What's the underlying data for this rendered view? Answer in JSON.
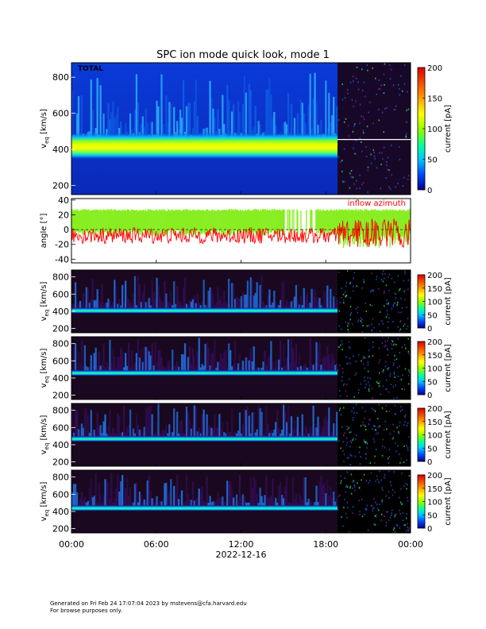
{
  "title": "SPC ion mode quick look, mode 1",
  "panel1_tag": "TOTAL",
  "ylabel_speed": "v",
  "ylabel_speed_sub": "eq",
  "ylabel_speed_unit": "[km/s]",
  "ylabel_angle": "angle [°]",
  "colorbar_label": "current [pA]",
  "angle_legend": "inflow azimuth",
  "x_ticks": [
    "00:00",
    "06:00",
    "12:00",
    "18:00",
    "00:00"
  ],
  "date_label": "2022-12-16",
  "footer_line1": "Generated on Fri Feb 24 17:07:04 2023 by mstevens@cfa.harvard.edu",
  "footer_line2": "For browse purposes only.",
  "colors": {
    "azimuth": "#ff0000",
    "elevation": "#88ee22"
  },
  "chart_data": [
    {
      "type": "heatmap",
      "name": "TOTAL",
      "x_range": [
        "2022-12-16 00:00",
        "2022-12-17 00:00"
      ],
      "ylim": [
        150,
        880
      ],
      "y_ticks": [
        200,
        400,
        600,
        800
      ],
      "colorbar_range": [
        0,
        200
      ],
      "colorbar_ticks": [
        0,
        50,
        100,
        150,
        200
      ],
      "peak_speed_km_s": 420
    },
    {
      "type": "line",
      "name": "angle",
      "ylim": [
        -45,
        42
      ],
      "y_ticks": [
        -40,
        -20,
        0,
        20,
        40
      ],
      "series": [
        {
          "name": "inflow azimuth",
          "color": "#ff0000",
          "typical_range": [
            -20,
            10
          ]
        },
        {
          "color": "#88ee22",
          "typical_range": [
            0,
            28
          ]
        }
      ]
    },
    {
      "type": "heatmap",
      "ylim": [
        150,
        880
      ],
      "y_ticks": [
        200,
        400,
        600,
        800
      ],
      "colorbar_ticks": [
        0,
        50,
        100,
        150,
        200
      ],
      "peak_speed_km_s": 410
    },
    {
      "type": "heatmap",
      "ylim": [
        150,
        880
      ],
      "y_ticks": [
        200,
        400,
        600,
        800
      ],
      "colorbar_ticks": [
        0,
        50,
        100,
        150,
        200
      ],
      "peak_speed_km_s": 460
    },
    {
      "type": "heatmap",
      "ylim": [
        150,
        880
      ],
      "y_ticks": [
        200,
        400,
        600,
        800
      ],
      "colorbar_ticks": [
        0,
        50,
        100,
        150,
        200
      ],
      "peak_speed_km_s": 470
    },
    {
      "type": "heatmap",
      "ylim": [
        150,
        880
      ],
      "y_ticks": [
        200,
        400,
        600,
        800
      ],
      "colorbar_ticks": [
        0,
        50,
        100,
        150,
        200
      ],
      "peak_speed_km_s": 440
    }
  ]
}
